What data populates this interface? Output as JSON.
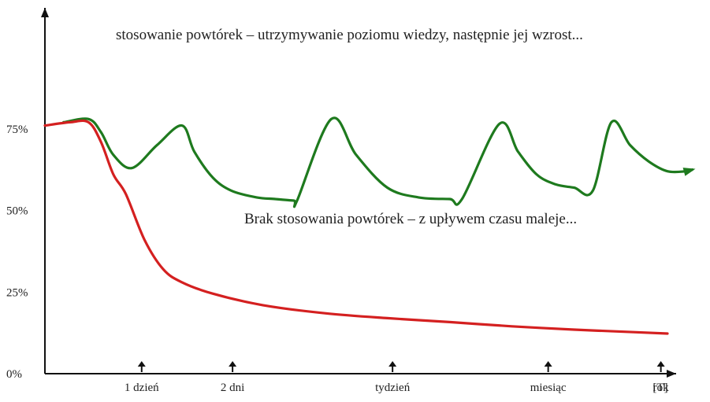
{
  "chart_data": {
    "type": "line",
    "annotations": {
      "top": "stosowanie powtórek – utrzymywanie poziomu wiedzy, następnie jej wzrost...",
      "middle": "Brak stosowania powtórek – z upływem czasu maleje..."
    },
    "x_ticks": [
      "1 dzień",
      "2 dni",
      "tydzień",
      "miesiąc",
      "rok"
    ],
    "x_unit": "[T]",
    "y_ticks": [
      "0%",
      "25%",
      "50%",
      "75%"
    ],
    "ylim": [
      0,
      100
    ],
    "colors": {
      "green": "#1e7a1e",
      "red": "#d42020",
      "axis": "#111111"
    },
    "series": [
      {
        "color": "#1e7a1e",
        "arrow_end": true,
        "points": [
          [
            0.03,
            77
          ],
          [
            0.07,
            78
          ],
          [
            0.09,
            74
          ],
          [
            0.11,
            67
          ],
          [
            0.14,
            63
          ],
          [
            0.18,
            70
          ],
          [
            0.22,
            76
          ],
          [
            0.24,
            68
          ],
          [
            0.27,
            60
          ],
          [
            0.3,
            56
          ],
          [
            0.34,
            54
          ],
          [
            0.37,
            53.5
          ],
          [
            0.4,
            53
          ],
          [
            0.405,
            53
          ],
          [
            0.46,
            78
          ],
          [
            0.5,
            67
          ],
          [
            0.55,
            57
          ],
          [
            0.6,
            54
          ],
          [
            0.65,
            53.5
          ],
          [
            0.67,
            53.5
          ],
          [
            0.73,
            76.5
          ],
          [
            0.76,
            68
          ],
          [
            0.79,
            61
          ],
          [
            0.82,
            58
          ],
          [
            0.85,
            57
          ],
          [
            0.88,
            56
          ],
          [
            0.91,
            77
          ],
          [
            0.94,
            70
          ],
          [
            0.97,
            65
          ],
          [
            1.0,
            62
          ],
          [
            1.03,
            62
          ],
          [
            1.04,
            62.5
          ]
        ]
      },
      {
        "color": "#d42020",
        "arrow_end": false,
        "points": [
          [
            0.0,
            76
          ],
          [
            0.04,
            77
          ],
          [
            0.07,
            77
          ],
          [
            0.09,
            71
          ],
          [
            0.11,
            61
          ],
          [
            0.13,
            55
          ],
          [
            0.16,
            41
          ],
          [
            0.19,
            32
          ],
          [
            0.22,
            28
          ],
          [
            0.27,
            24.5
          ],
          [
            0.35,
            21
          ],
          [
            0.45,
            18.5
          ],
          [
            0.55,
            17
          ],
          [
            0.65,
            15.8
          ],
          [
            0.75,
            14.5
          ],
          [
            0.85,
            13.5
          ],
          [
            0.95,
            12.7
          ],
          [
            1.0,
            12.3
          ]
        ]
      }
    ]
  }
}
